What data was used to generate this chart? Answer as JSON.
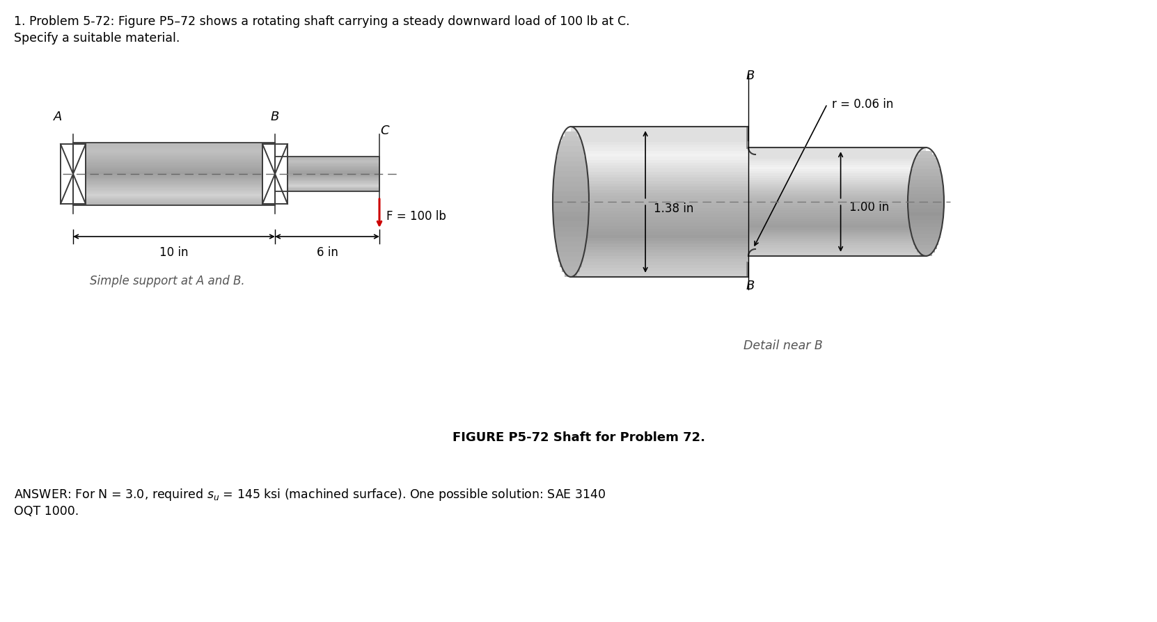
{
  "title_line1": "1. Problem 5-72: Figure P5–72 shows a rotating shaft carrying a steady downward load of 100 lb at C.",
  "title_line2": "Specify a suitable material.",
  "figure_caption": "FIGURE P5-72 Shaft for Problem 72.",
  "answer_line1": "ANSWER: For N = 3.0, required s",
  "answer_su": "u",
  "answer_line1b": " = 145 ksi (machined surface). One possible solution: SAE 3140",
  "answer_line2": "OQT 1000.",
  "label_A": "A",
  "label_B": "B",
  "label_C": "C",
  "dim_10in": "10 in",
  "dim_6in": "6 in",
  "force_label": "F = 100 lb",
  "support_label": "Simple support at A and B.",
  "detail_label": "Detail near B",
  "dim_138": "1.38 in",
  "dim_100": "1.00 in",
  "radius_label": "r = 0.06 in",
  "bg_color": "#ffffff",
  "shaft_border": "#3a3a3a",
  "force_color": "#cc0000",
  "text_color": "#000000",
  "gray_text": "#555555"
}
